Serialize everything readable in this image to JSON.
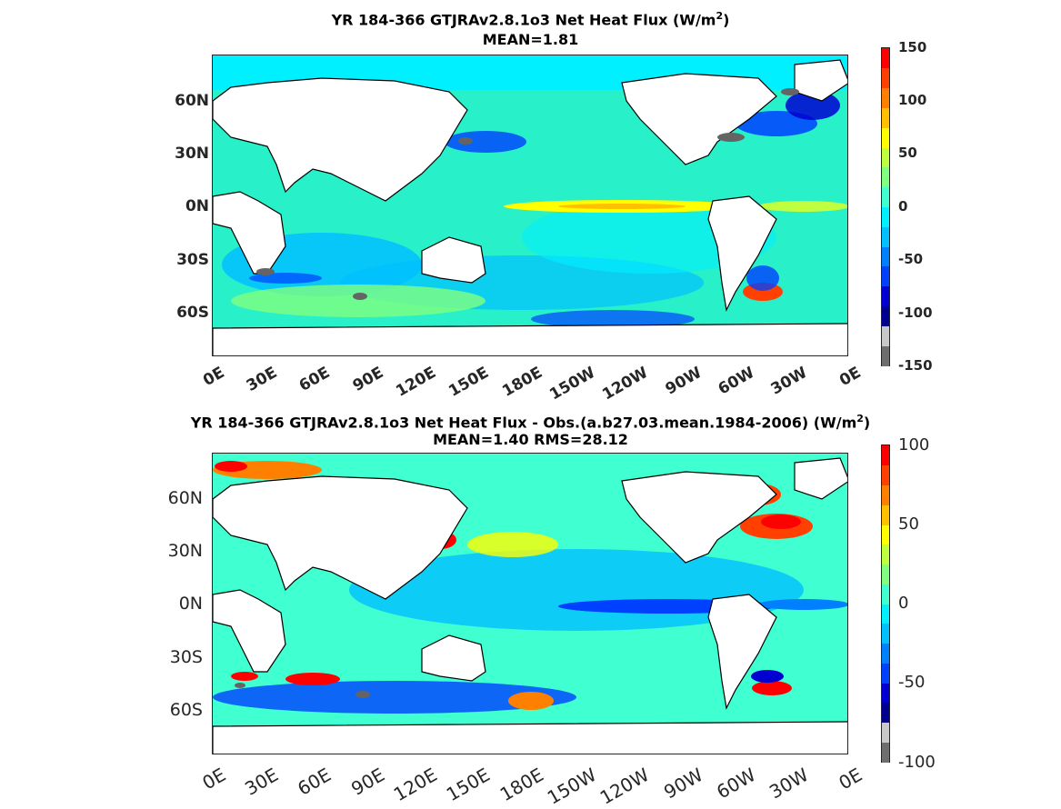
{
  "top": {
    "title_main": "YR 184-366 GTJRAv2.8.1o3  Net Heat Flux (W/m",
    "title_sup": "2",
    "title_close": ")",
    "subtitle": "MEAN=1.81",
    "lat_labels": [
      "60N",
      "30N",
      "0N",
      "30S",
      "60S"
    ],
    "lon_labels": [
      "0E",
      "30E",
      "60E",
      "90E",
      "120E",
      "150E",
      "180E",
      "150W",
      "120W",
      "90W",
      "60W",
      "30W",
      "0E"
    ],
    "colorbar_labels": [
      "150",
      "100",
      "50",
      "0",
      "-50",
      "-100",
      "-150"
    ],
    "colorbar_range": [
      -150,
      150
    ]
  },
  "bottom": {
    "title_main": "YR 184-366 GTJRAv2.8.1o3  Net Heat Flux - Obs.(a.b27.03.mean.1984-2006) (W/m",
    "title_sup": "2",
    "title_close": ")",
    "subtitle": "MEAN=1.40 RMS=28.12",
    "lat_labels": [
      "60N",
      "30N",
      "0N",
      "30S",
      "60S"
    ],
    "lon_labels": [
      "0E",
      "30E",
      "60E",
      "90E",
      "120E",
      "150E",
      "180E",
      "150W",
      "120W",
      "90W",
      "60W",
      "30W",
      "0E"
    ],
    "colorbar_labels": [
      "100",
      "50",
      "0",
      "-50",
      "-100"
    ],
    "colorbar_range": [
      -100,
      100
    ]
  },
  "colors": {
    "land": "#ffffff",
    "ice": "#646464",
    "ocean_base": "#28f0c8",
    "colormap": [
      "#6e6e6e",
      "#c8c8c8",
      "#00008f",
      "#0000d0",
      "#0040ff",
      "#0080ff",
      "#00c0ff",
      "#00f0ff",
      "#40ffd0",
      "#80ff80",
      "#c0ff40",
      "#ffff00",
      "#ffc000",
      "#ff8000",
      "#ff4000",
      "#ff0000"
    ]
  }
}
